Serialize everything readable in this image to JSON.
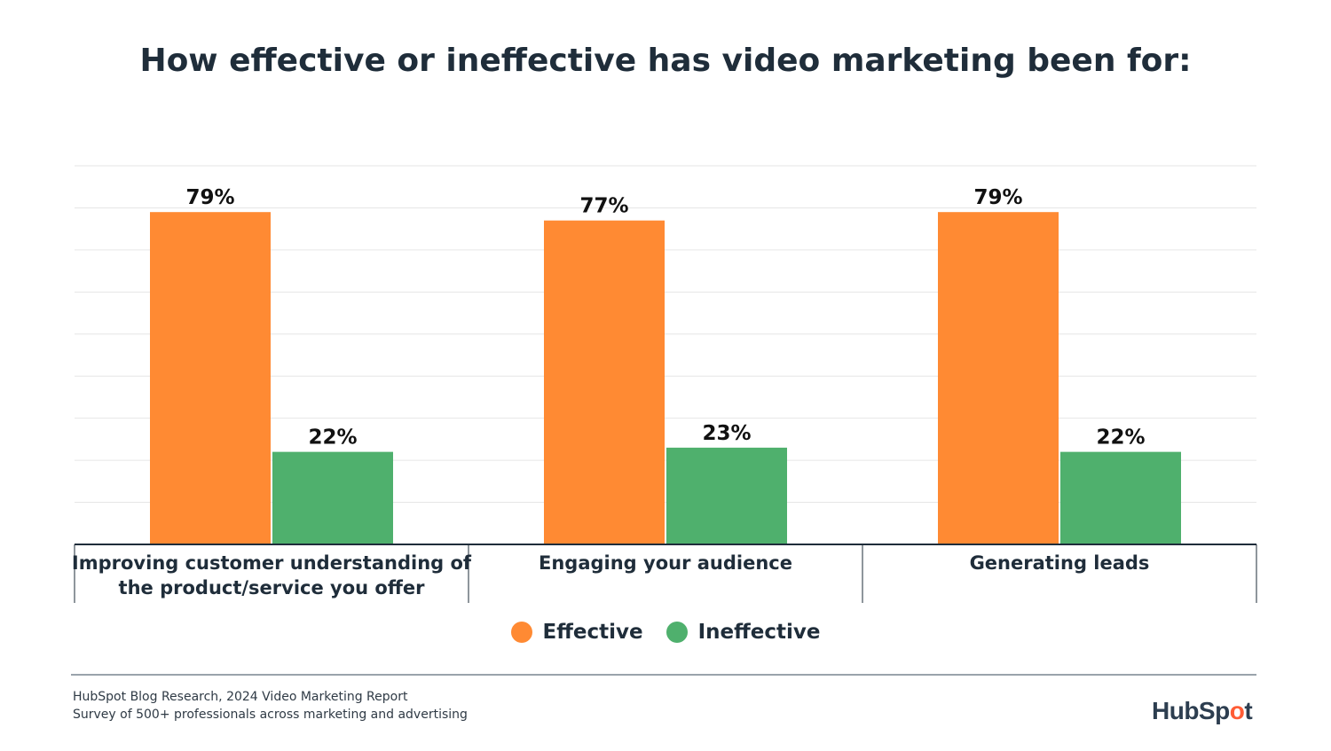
{
  "colors": {
    "effective": "#FF8A33",
    "ineffective": "#4FB06D",
    "text": "#1F2D3A",
    "grid": "#E6E6E6"
  },
  "footer": {
    "source_line_1": "HubSpot Blog Research, 2024 Video Marketing Report",
    "source_line_2": "Survey of 500+ professionals across marketing and advertising"
  },
  "logo": {
    "text_before": "HubSp",
    "sprocket": "o",
    "text_after": "t",
    "icon": "hubspot-sprocket-icon"
  },
  "chart_data": {
    "type": "bar",
    "title": "How effective or ineffective has video marketing been for:",
    "xlabel": "",
    "ylabel": "",
    "ylim": [
      0,
      90
    ],
    "grid": true,
    "legend_position": "bottom-center",
    "categories": [
      [
        "Improving customer understanding of",
        "the product/service you offer"
      ],
      [
        "Engaging your audience"
      ],
      [
        "Generating leads"
      ]
    ],
    "series": [
      {
        "name": "Effective",
        "values": [
          79,
          77,
          79
        ],
        "labels": [
          "79%",
          "77%",
          "79%"
        ],
        "color": "#FF8A33"
      },
      {
        "name": "Ineffective",
        "values": [
          22,
          23,
          22
        ],
        "labels": [
          "22%",
          "23%",
          "22%"
        ],
        "color": "#4FB06D"
      }
    ]
  }
}
